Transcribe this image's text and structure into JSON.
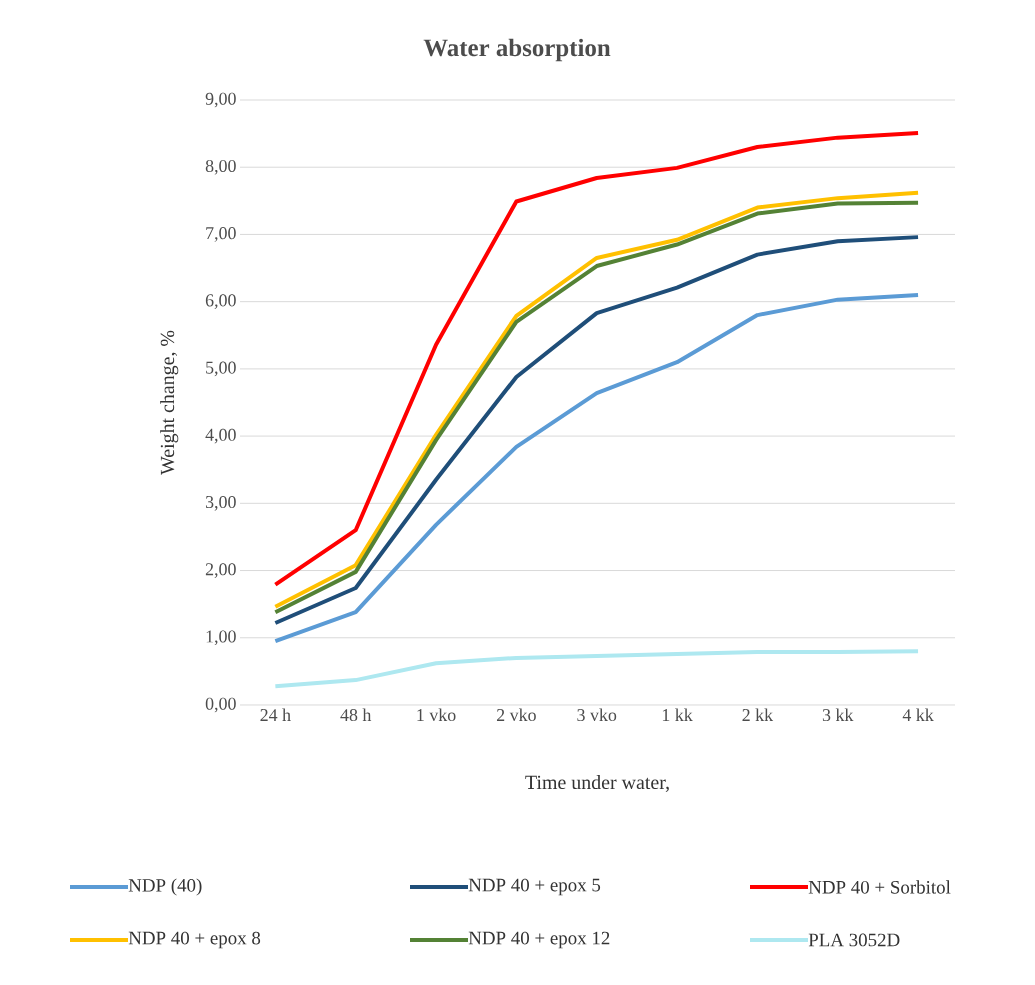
{
  "chart_data": {
    "type": "line",
    "title": "Water absorption",
    "xlabel": "Time under water,",
    "ylabel": "Weight change, %",
    "categories": [
      "24 h",
      "48 h",
      "1 vko",
      "2 vko",
      "3 vko",
      "1 kk",
      "2 kk",
      "3 kk",
      "4 kk"
    ],
    "ylim": [
      0,
      9
    ],
    "yticks": [
      {
        "value": 0,
        "label": "0,00"
      },
      {
        "value": 1,
        "label": "1,00"
      },
      {
        "value": 2,
        "label": "2,00"
      },
      {
        "value": 3,
        "label": "3,00"
      },
      {
        "value": 4,
        "label": "4,00"
      },
      {
        "value": 5,
        "label": "5,00"
      },
      {
        "value": 6,
        "label": "6,00"
      },
      {
        "value": 7,
        "label": "7,00"
      },
      {
        "value": 8,
        "label": "8,00"
      },
      {
        "value": 9,
        "label": "9,00"
      }
    ],
    "grid": "y",
    "legend": "bottom",
    "marker": "none",
    "line_style": "solid",
    "series": [
      {
        "name": "NDP (40)",
        "color": "#5b9bd5",
        "values": [
          0.95,
          1.38,
          2.68,
          3.84,
          4.64,
          5.1,
          5.8,
          6.03,
          6.1
        ]
      },
      {
        "name": "NDP 40 + epox 5",
        "color": "#1f4e79",
        "values": [
          1.22,
          1.74,
          3.35,
          4.88,
          5.83,
          6.21,
          6.7,
          6.9,
          6.96
        ]
      },
      {
        "name": "NDP 40 + Sorbitol",
        "color": "#ff0000",
        "values": [
          1.79,
          2.6,
          5.36,
          7.49,
          7.84,
          7.99,
          8.3,
          8.44,
          8.51
        ]
      },
      {
        "name": "NDP 40 + epox 8",
        "color": "#ffc000",
        "values": [
          1.46,
          2.08,
          4.02,
          5.79,
          6.65,
          6.92,
          7.4,
          7.54,
          7.62
        ]
      },
      {
        "name": "NDP 40 + epox 12",
        "color": "#548235",
        "values": [
          1.38,
          1.98,
          3.94,
          5.7,
          6.53,
          6.85,
          7.31,
          7.46,
          7.47
        ]
      },
      {
        "name": "PLA 3052D",
        "color": "#aee8f0",
        "values": [
          0.28,
          0.37,
          0.62,
          0.7,
          0.73,
          0.76,
          0.79,
          0.79,
          0.8
        ]
      }
    ]
  }
}
